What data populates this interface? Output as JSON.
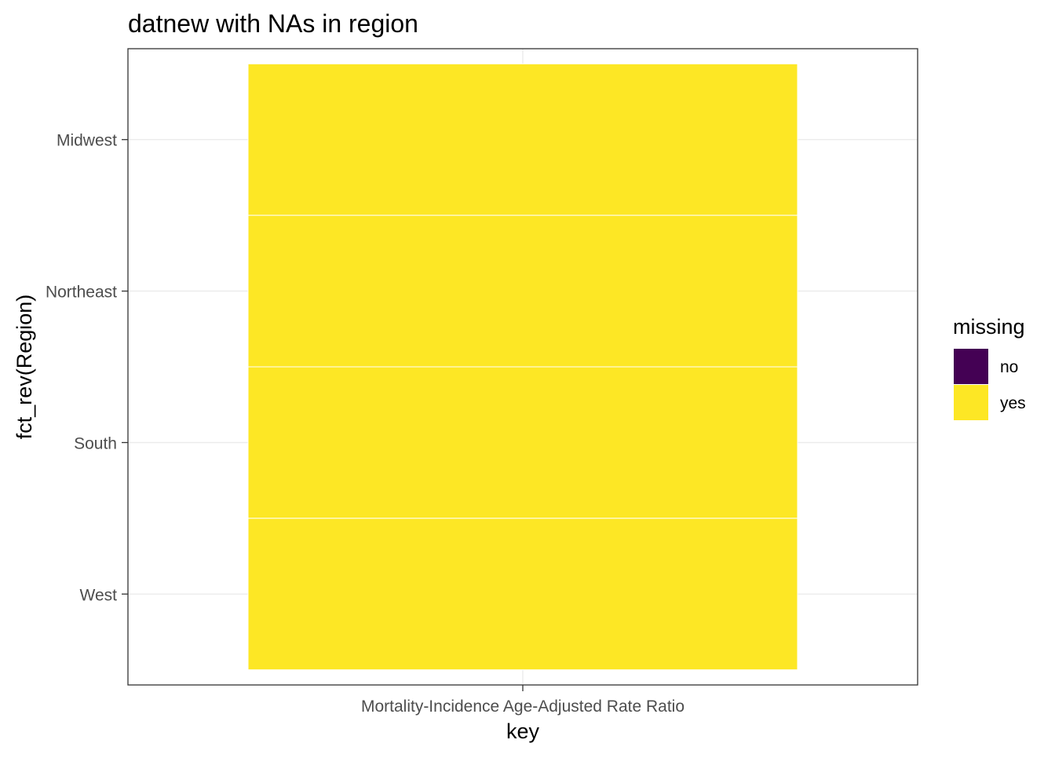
{
  "chart_data": {
    "type": "heatmap",
    "title": "datnew with NAs in region",
    "xlabel": "key",
    "ylabel": "fct_rev(Region)",
    "x_categories": [
      "Mortality-Incidence Age-Adjusted Rate Ratio"
    ],
    "y_categories": [
      "Midwest",
      "Northeast",
      "South",
      "West"
    ],
    "cells": [
      {
        "x": "Mortality-Incidence Age-Adjusted Rate Ratio",
        "y": "Midwest",
        "missing": "yes"
      },
      {
        "x": "Mortality-Incidence Age-Adjusted Rate Ratio",
        "y": "Northeast",
        "missing": "yes"
      },
      {
        "x": "Mortality-Incidence Age-Adjusted Rate Ratio",
        "y": "South",
        "missing": "yes"
      },
      {
        "x": "Mortality-Incidence Age-Adjusted Rate Ratio",
        "y": "West",
        "missing": "yes"
      }
    ],
    "legend": {
      "title": "missing",
      "placement": "right",
      "entries": [
        {
          "label": "no",
          "color": "#440154"
        },
        {
          "label": "yes",
          "color": "#FDE725"
        }
      ]
    },
    "grid": true
  }
}
